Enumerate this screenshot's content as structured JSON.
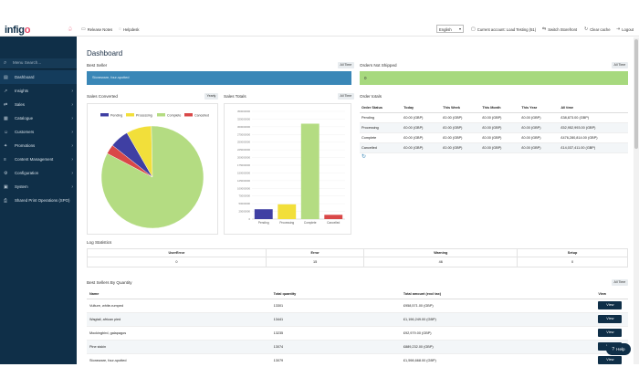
{
  "app": {
    "logo_main": "infig",
    "logo_accent": "o"
  },
  "sidebar": {
    "search_placeholder": "Menu Search...",
    "items": [
      {
        "label": "Dashboard",
        "icon": "dashboard-icon",
        "glyph": "▤"
      },
      {
        "label": "Insights",
        "icon": "insights-icon",
        "glyph": "↗"
      },
      {
        "label": "Sales",
        "icon": "sales-icon",
        "glyph": "⇄"
      },
      {
        "label": "Catalogue",
        "icon": "catalogue-icon",
        "glyph": "▦"
      },
      {
        "label": "Customers",
        "icon": "customers-icon",
        "glyph": "☺"
      },
      {
        "label": "Promotions",
        "icon": "promotions-icon",
        "glyph": "✦"
      },
      {
        "label": "Content Management",
        "icon": "content-icon",
        "glyph": "≡"
      },
      {
        "label": "Configuration",
        "icon": "configuration-icon",
        "glyph": "⚙"
      },
      {
        "label": "System",
        "icon": "system-icon",
        "glyph": "▣"
      },
      {
        "label": "Shared Print Operations (SPO)",
        "icon": "print-icon",
        "glyph": "⎙"
      }
    ]
  },
  "topbar": {
    "release_notes": "Release Notes",
    "helpdesk": "Helpdesk",
    "language": "English",
    "current_account": "Current account: Load Testing (51)",
    "switch_storefront": "Switch Storefront",
    "clear_cache": "Clear cache",
    "logout": "Logout"
  },
  "dashboard": {
    "title": "Dashboard",
    "best_seller": {
      "title": "Best Seller",
      "range": "All Time",
      "value": "Stoneware, four-spotted"
    },
    "orders_not_shipped": {
      "title": "Orders Not Shipped",
      "range": "All Time",
      "value": "0"
    },
    "sales_converted": {
      "title": "Sales Converted",
      "range": "Yearly"
    },
    "sales_totals": {
      "title": "Sales Totals",
      "range": "All Time"
    },
    "order_totals": {
      "title": "Order totals",
      "headers": [
        "Order Status",
        "Today",
        "This Week",
        "This Month",
        "This Year",
        "All time"
      ],
      "rows": [
        [
          "Pending",
          "£0.00 (GBP)",
          "£0.00 (GBP)",
          "£0.00 (GBP)",
          "£0.00 (GBP)",
          "£38,873.00 (GBP)"
        ],
        [
          "Processing",
          "£0.00 (GBP)",
          "£0.00 (GBP)",
          "£0.00 (GBP)",
          "£0.00 (GBP)",
          "£52,952,993.00 (GBP)"
        ],
        [
          "Complete",
          "£0.00 (GBP)",
          "£0.00 (GBP)",
          "£0.00 (GBP)",
          "£0.00 (GBP)",
          "£476,280,814.00 (GBP)"
        ],
        [
          "Cancelled",
          "£0.00 (GBP)",
          "£0.00 (GBP)",
          "£0.00 (GBP)",
          "£0.00 (GBP)",
          "£14,037,411.00 (GBP)"
        ]
      ]
    },
    "log_statistics": {
      "title": "Log Statistics",
      "headers": [
        "UserError",
        "Error",
        "Warning",
        "Setup"
      ],
      "values": [
        "0",
        "15",
        "46",
        "0"
      ]
    },
    "best_sellers_by_quantity": {
      "title": "Best Sellers By Quantity",
      "range": "All Time",
      "headers": [
        "Name",
        "Total quantity",
        "Total amount (excl tax)",
        "View"
      ],
      "view_label": "View",
      "rows": [
        [
          "Vulture, white-rumped",
          "13301",
          "£958,571.00 (GBP)"
        ],
        [
          "Wagtail, african pied",
          "13441",
          "£1,196,249.00 (GBP)"
        ],
        [
          "Mockingbird, galapagos",
          "13235",
          "£92,979.00 (GBP)"
        ],
        [
          "Pine siskin",
          "13074",
          "£889,232.00 (GBP)"
        ],
        [
          "Stoneware, four-spotted",
          "13079",
          "£1,598,668.00 (GBP)"
        ]
      ]
    },
    "help_label": "Help"
  },
  "chart_data": [
    {
      "type": "pie",
      "legend": [
        "Pending",
        "Processing",
        "Complete",
        "Cancelled"
      ],
      "values": [
        6,
        8,
        83,
        3
      ],
      "colors": [
        "#3f3fa3",
        "#f2df3a",
        "#b4dc82",
        "#d94848"
      ]
    },
    {
      "type": "bar",
      "categories": [
        "Pending",
        "Processing",
        "Complete",
        "Cancelled"
      ],
      "values": [
        32,
        48,
        310,
        14
      ],
      "colors": [
        "#3f3fa3",
        "#f2df3a",
        "#b4dc82",
        "#d94848"
      ],
      "ylim": [
        0,
        350
      ],
      "yticks": [
        "0",
        "25000000",
        "50000000",
        "75000000",
        "100000000",
        "125000000",
        "150000000",
        "175000000",
        "200000000",
        "225000000",
        "250000000",
        "275000000",
        "300000000",
        "325000000",
        "350000000"
      ]
    }
  ]
}
